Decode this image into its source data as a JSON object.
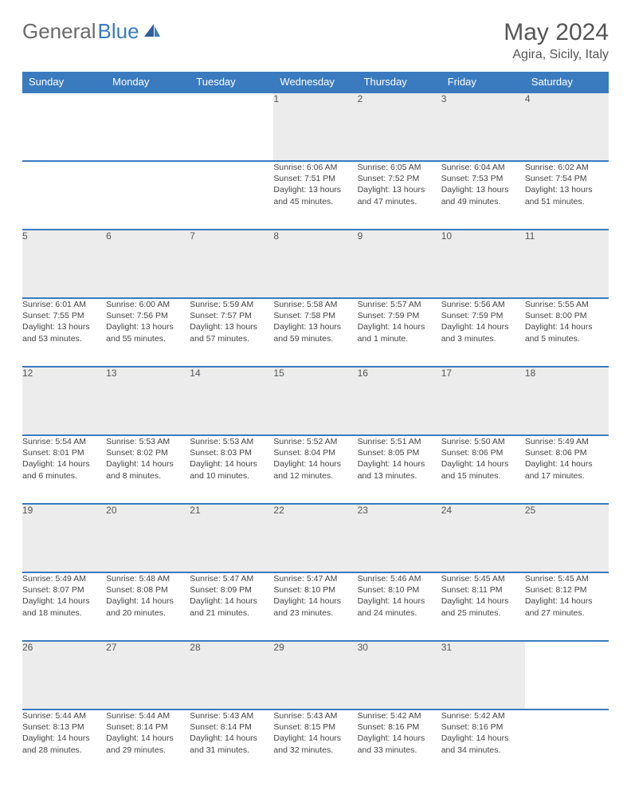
{
  "brand": {
    "part1": "General",
    "part2": "Blue"
  },
  "title": "May 2024",
  "location": "Agira, Sicily, Italy",
  "header_color": "#3a7bbf",
  "daynum_bg": "#ececec",
  "text_color": "#555555",
  "weekdays": [
    "Sunday",
    "Monday",
    "Tuesday",
    "Wednesday",
    "Thursday",
    "Friday",
    "Saturday"
  ],
  "weeks": [
    [
      null,
      null,
      null,
      {
        "n": "1",
        "sunrise": "Sunrise: 6:06 AM",
        "sunset": "Sunset: 7:51 PM",
        "day1": "Daylight: 13 hours",
        "day2": "and 45 minutes."
      },
      {
        "n": "2",
        "sunrise": "Sunrise: 6:05 AM",
        "sunset": "Sunset: 7:52 PM",
        "day1": "Daylight: 13 hours",
        "day2": "and 47 minutes."
      },
      {
        "n": "3",
        "sunrise": "Sunrise: 6:04 AM",
        "sunset": "Sunset: 7:53 PM",
        "day1": "Daylight: 13 hours",
        "day2": "and 49 minutes."
      },
      {
        "n": "4",
        "sunrise": "Sunrise: 6:02 AM",
        "sunset": "Sunset: 7:54 PM",
        "day1": "Daylight: 13 hours",
        "day2": "and 51 minutes."
      }
    ],
    [
      {
        "n": "5",
        "sunrise": "Sunrise: 6:01 AM",
        "sunset": "Sunset: 7:55 PM",
        "day1": "Daylight: 13 hours",
        "day2": "and 53 minutes."
      },
      {
        "n": "6",
        "sunrise": "Sunrise: 6:00 AM",
        "sunset": "Sunset: 7:56 PM",
        "day1": "Daylight: 13 hours",
        "day2": "and 55 minutes."
      },
      {
        "n": "7",
        "sunrise": "Sunrise: 5:59 AM",
        "sunset": "Sunset: 7:57 PM",
        "day1": "Daylight: 13 hours",
        "day2": "and 57 minutes."
      },
      {
        "n": "8",
        "sunrise": "Sunrise: 5:58 AM",
        "sunset": "Sunset: 7:58 PM",
        "day1": "Daylight: 13 hours",
        "day2": "and 59 minutes."
      },
      {
        "n": "9",
        "sunrise": "Sunrise: 5:57 AM",
        "sunset": "Sunset: 7:59 PM",
        "day1": "Daylight: 14 hours",
        "day2": "and 1 minute."
      },
      {
        "n": "10",
        "sunrise": "Sunrise: 5:56 AM",
        "sunset": "Sunset: 7:59 PM",
        "day1": "Daylight: 14 hours",
        "day2": "and 3 minutes."
      },
      {
        "n": "11",
        "sunrise": "Sunrise: 5:55 AM",
        "sunset": "Sunset: 8:00 PM",
        "day1": "Daylight: 14 hours",
        "day2": "and 5 minutes."
      }
    ],
    [
      {
        "n": "12",
        "sunrise": "Sunrise: 5:54 AM",
        "sunset": "Sunset: 8:01 PM",
        "day1": "Daylight: 14 hours",
        "day2": "and 6 minutes."
      },
      {
        "n": "13",
        "sunrise": "Sunrise: 5:53 AM",
        "sunset": "Sunset: 8:02 PM",
        "day1": "Daylight: 14 hours",
        "day2": "and 8 minutes."
      },
      {
        "n": "14",
        "sunrise": "Sunrise: 5:53 AM",
        "sunset": "Sunset: 8:03 PM",
        "day1": "Daylight: 14 hours",
        "day2": "and 10 minutes."
      },
      {
        "n": "15",
        "sunrise": "Sunrise: 5:52 AM",
        "sunset": "Sunset: 8:04 PM",
        "day1": "Daylight: 14 hours",
        "day2": "and 12 minutes."
      },
      {
        "n": "16",
        "sunrise": "Sunrise: 5:51 AM",
        "sunset": "Sunset: 8:05 PM",
        "day1": "Daylight: 14 hours",
        "day2": "and 13 minutes."
      },
      {
        "n": "17",
        "sunrise": "Sunrise: 5:50 AM",
        "sunset": "Sunset: 8:06 PM",
        "day1": "Daylight: 14 hours",
        "day2": "and 15 minutes."
      },
      {
        "n": "18",
        "sunrise": "Sunrise: 5:49 AM",
        "sunset": "Sunset: 8:06 PM",
        "day1": "Daylight: 14 hours",
        "day2": "and 17 minutes."
      }
    ],
    [
      {
        "n": "19",
        "sunrise": "Sunrise: 5:49 AM",
        "sunset": "Sunset: 8:07 PM",
        "day1": "Daylight: 14 hours",
        "day2": "and 18 minutes."
      },
      {
        "n": "20",
        "sunrise": "Sunrise: 5:48 AM",
        "sunset": "Sunset: 8:08 PM",
        "day1": "Daylight: 14 hours",
        "day2": "and 20 minutes."
      },
      {
        "n": "21",
        "sunrise": "Sunrise: 5:47 AM",
        "sunset": "Sunset: 8:09 PM",
        "day1": "Daylight: 14 hours",
        "day2": "and 21 minutes."
      },
      {
        "n": "22",
        "sunrise": "Sunrise: 5:47 AM",
        "sunset": "Sunset: 8:10 PM",
        "day1": "Daylight: 14 hours",
        "day2": "and 23 minutes."
      },
      {
        "n": "23",
        "sunrise": "Sunrise: 5:46 AM",
        "sunset": "Sunset: 8:10 PM",
        "day1": "Daylight: 14 hours",
        "day2": "and 24 minutes."
      },
      {
        "n": "24",
        "sunrise": "Sunrise: 5:45 AM",
        "sunset": "Sunset: 8:11 PM",
        "day1": "Daylight: 14 hours",
        "day2": "and 25 minutes."
      },
      {
        "n": "25",
        "sunrise": "Sunrise: 5:45 AM",
        "sunset": "Sunset: 8:12 PM",
        "day1": "Daylight: 14 hours",
        "day2": "and 27 minutes."
      }
    ],
    [
      {
        "n": "26",
        "sunrise": "Sunrise: 5:44 AM",
        "sunset": "Sunset: 8:13 PM",
        "day1": "Daylight: 14 hours",
        "day2": "and 28 minutes."
      },
      {
        "n": "27",
        "sunrise": "Sunrise: 5:44 AM",
        "sunset": "Sunset: 8:14 PM",
        "day1": "Daylight: 14 hours",
        "day2": "and 29 minutes."
      },
      {
        "n": "28",
        "sunrise": "Sunrise: 5:43 AM",
        "sunset": "Sunset: 8:14 PM",
        "day1": "Daylight: 14 hours",
        "day2": "and 31 minutes."
      },
      {
        "n": "29",
        "sunrise": "Sunrise: 5:43 AM",
        "sunset": "Sunset: 8:15 PM",
        "day1": "Daylight: 14 hours",
        "day2": "and 32 minutes."
      },
      {
        "n": "30",
        "sunrise": "Sunrise: 5:42 AM",
        "sunset": "Sunset: 8:16 PM",
        "day1": "Daylight: 14 hours",
        "day2": "and 33 minutes."
      },
      {
        "n": "31",
        "sunrise": "Sunrise: 5:42 AM",
        "sunset": "Sunset: 8:16 PM",
        "day1": "Daylight: 14 hours",
        "day2": "and 34 minutes."
      },
      null
    ]
  ]
}
